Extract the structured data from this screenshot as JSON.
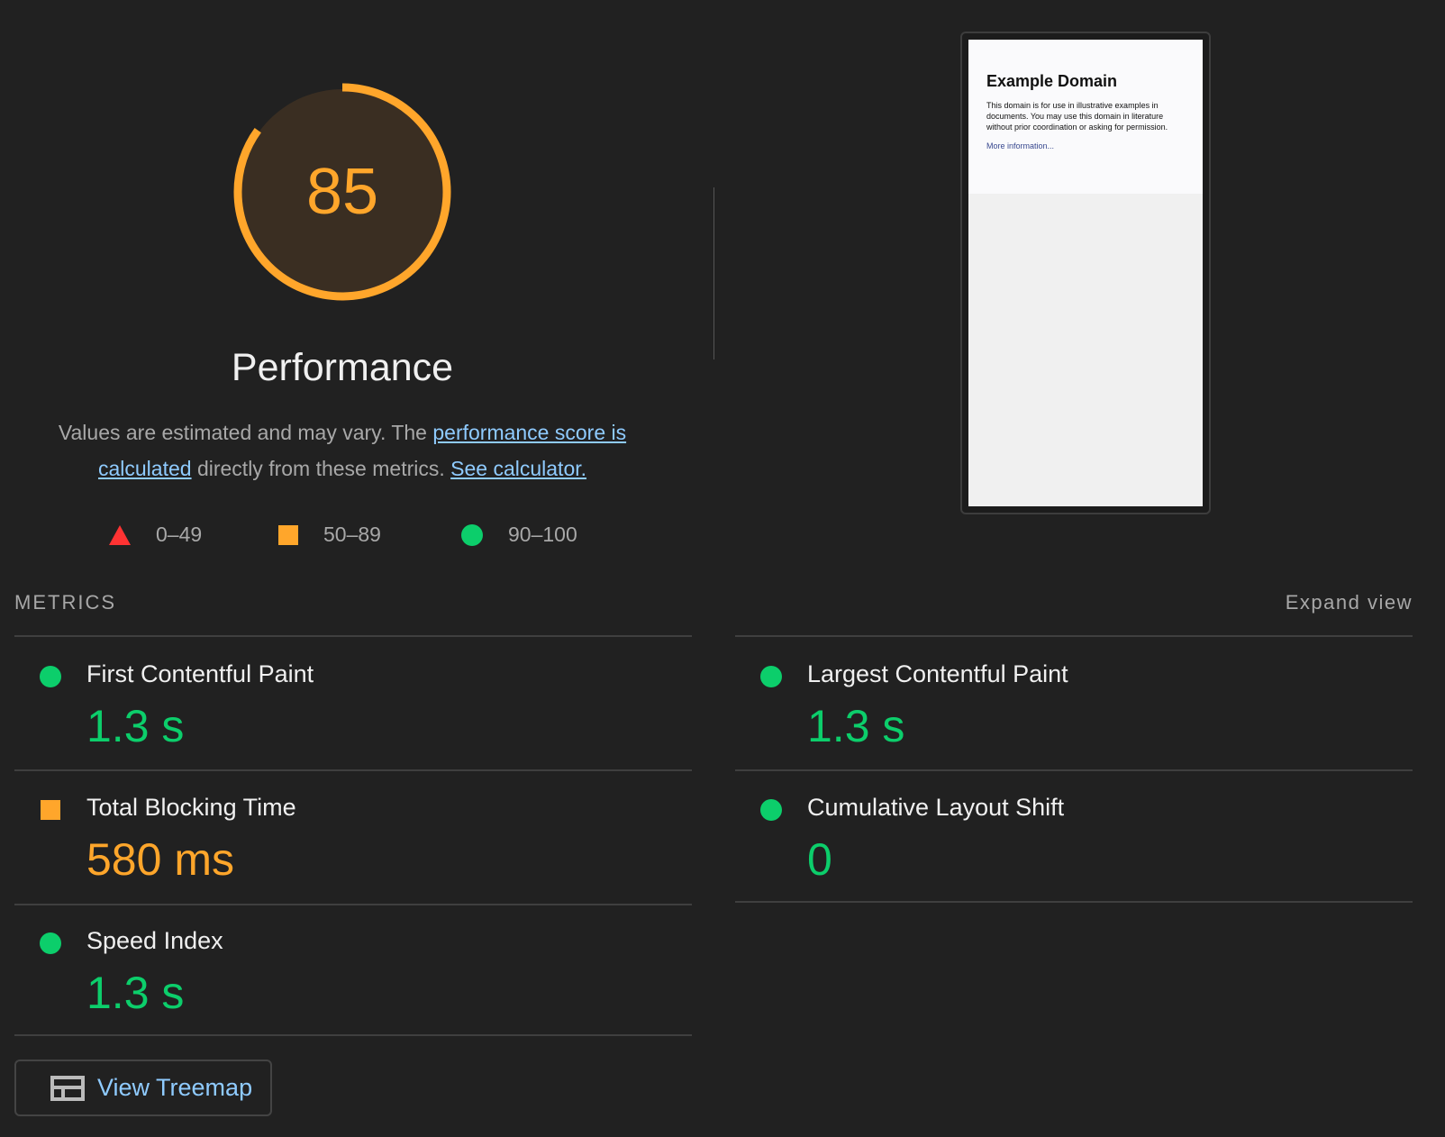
{
  "gauge": {
    "score": 85,
    "category": "Performance",
    "color": "#ffa62b",
    "fill": "#3a2e22"
  },
  "description": {
    "text1": "Values are estimated and may vary. The ",
    "link1": "performance score is calculated",
    "text2": " directly from these metrics. ",
    "link2": "See calculator."
  },
  "legend": [
    {
      "icon": "triangle-icon",
      "range": "0–49",
      "color": "#ff3333"
    },
    {
      "icon": "square-icon",
      "range": "50–89",
      "color": "#ffa62b"
    },
    {
      "icon": "circle-icon",
      "range": "90–100",
      "color": "#0cce6b"
    }
  ],
  "screenshot": {
    "title": "Example Domain",
    "body": "This domain is for use in illustrative examples in documents. You may use this domain in literature without prior coordination or asking for permission.",
    "link": "More information..."
  },
  "metrics_header": "METRICS",
  "expand_view": "Expand view",
  "metrics": [
    {
      "name": "First Contentful Paint",
      "value": "1.3 s",
      "rating": "good"
    },
    {
      "name": "Largest Contentful Paint",
      "value": "1.3 s",
      "rating": "good"
    },
    {
      "name": "Total Blocking Time",
      "value": "580 ms",
      "rating": "average"
    },
    {
      "name": "Cumulative Layout Shift",
      "value": "0",
      "rating": "good"
    },
    {
      "name": "Speed Index",
      "value": "1.3 s",
      "rating": "good"
    }
  ],
  "treemap_button": "View Treemap"
}
